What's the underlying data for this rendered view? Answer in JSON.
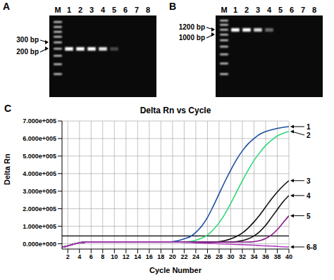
{
  "panels": [
    {
      "letter": "A",
      "type": "gel",
      "ladder_lane": "M",
      "sample_lanes": [
        "1",
        "2",
        "3",
        "4",
        "5",
        "6",
        "7",
        "8"
      ],
      "band_intensity": [
        1,
        1,
        1,
        0.9,
        0.25,
        0,
        0,
        0
      ],
      "markers": [
        {
          "label": "300 bp"
        },
        {
          "label": "200 bp"
        }
      ]
    },
    {
      "letter": "B",
      "type": "gel",
      "ladder_lane": "M",
      "sample_lanes": [
        "1",
        "2",
        "3",
        "4",
        "5",
        "6",
        "7",
        "8"
      ],
      "band_intensity": [
        1,
        1,
        0.85,
        0.4,
        0,
        0,
        0,
        0
      ],
      "markers": [
        {
          "label": "1200 bp"
        },
        {
          "label": "1000 bp"
        }
      ]
    }
  ],
  "chart_data": {
    "type": "line",
    "letter": "C",
    "title": "Delta Rn vs Cycle",
    "x_label": "Cycle Number",
    "y_label": "Delta Rn",
    "grid": true,
    "threshold": 45000,
    "x": [
      1,
      2,
      3,
      4,
      5,
      6,
      7,
      8,
      9,
      10,
      11,
      12,
      13,
      14,
      15,
      16,
      17,
      18,
      19,
      20,
      21,
      22,
      23,
      24,
      25,
      26,
      27,
      28,
      29,
      30,
      31,
      32,
      33,
      34,
      35,
      36,
      37,
      38,
      39,
      40
    ],
    "xlim": [
      1,
      40
    ],
    "xticks": [
      2,
      4,
      6,
      8,
      10,
      12,
      14,
      16,
      18,
      20,
      22,
      24,
      26,
      28,
      30,
      32,
      34,
      36,
      38,
      40
    ],
    "ylim": [
      -30000,
      700000
    ],
    "yticks": [
      {
        "value": 0,
        "label": "0.000e+000"
      },
      {
        "value": 100000,
        "label": "1.000e+005"
      },
      {
        "value": 200000,
        "label": "2.000e+005"
      },
      {
        "value": 300000,
        "label": "3.000e+005"
      },
      {
        "value": 400000,
        "label": "4.000e+005"
      },
      {
        "value": 500000,
        "label": "5.000e+005"
      },
      {
        "value": 600000,
        "label": "6.000e+005"
      },
      {
        "value": 700000,
        "label": "7.000e+005"
      }
    ],
    "series": [
      {
        "name": "1",
        "color": "#1f4fa0",
        "values": [
          -20000,
          -12000,
          -2000,
          6000,
          9000,
          10000,
          10000,
          10000,
          10000,
          10000,
          10000,
          10000,
          10000,
          10000,
          10000,
          10000,
          10000,
          10000,
          10000,
          12000,
          18000,
          28000,
          40000,
          65000,
          100000,
          150000,
          215000,
          285000,
          355000,
          420000,
          480000,
          530000,
          570000,
          600000,
          625000,
          640000,
          650000,
          658000,
          664000,
          668000
        ]
      },
      {
        "name": "2",
        "color": "#2ed87a",
        "values": [
          -20000,
          -12000,
          -2000,
          6000,
          9000,
          10000,
          10000,
          10000,
          10000,
          10000,
          10000,
          10000,
          10000,
          10000,
          10000,
          10000,
          10000,
          10000,
          10000,
          10000,
          10000,
          10000,
          13000,
          20000,
          32000,
          50000,
          80000,
          120000,
          170000,
          230000,
          295000,
          360000,
          420000,
          475000,
          520000,
          560000,
          590000,
          615000,
          630000,
          640000
        ]
      },
      {
        "name": "3",
        "color": "#111111",
        "values": [
          -20000,
          -12000,
          -2000,
          6000,
          9000,
          10000,
          10000,
          10000,
          10000,
          10000,
          10000,
          10000,
          10000,
          10000,
          10000,
          10000,
          10000,
          10000,
          10000,
          10000,
          10000,
          10000,
          10000,
          10000,
          10000,
          10000,
          10000,
          12000,
          18000,
          28000,
          42000,
          62000,
          90000,
          125000,
          165000,
          210000,
          255000,
          295000,
          330000,
          360000
        ]
      },
      {
        "name": "4",
        "color": "#111111",
        "values": [
          -20000,
          -12000,
          -2000,
          6000,
          9000,
          10000,
          10000,
          10000,
          10000,
          10000,
          10000,
          10000,
          10000,
          10000,
          10000,
          10000,
          10000,
          10000,
          10000,
          10000,
          10000,
          10000,
          10000,
          10000,
          10000,
          10000,
          10000,
          10000,
          10000,
          10000,
          12000,
          18000,
          28000,
          45000,
          70000,
          105000,
          150000,
          195000,
          240000,
          275000
        ]
      },
      {
        "name": "5",
        "color": "#8a1a8a",
        "values": [
          -20000,
          -12000,
          -2000,
          6000,
          9000,
          10000,
          10000,
          10000,
          10000,
          10000,
          10000,
          10000,
          10000,
          10000,
          10000,
          10000,
          10000,
          10000,
          10000,
          10000,
          10000,
          10000,
          10000,
          10000,
          10000,
          10000,
          10000,
          10000,
          10000,
          10000,
          10000,
          10000,
          10000,
          12000,
          18000,
          30000,
          50000,
          80000,
          120000,
          160000
        ]
      },
      {
        "name": "6-8",
        "color": "#b040c0",
        "values": [
          -20000,
          -12000,
          -2000,
          6000,
          9000,
          10000,
          10000,
          10000,
          10000,
          10000,
          10000,
          10000,
          10000,
          10000,
          10000,
          10000,
          10000,
          10000,
          10000,
          10000,
          9000,
          8000,
          7000,
          5000,
          4000,
          3000,
          2000,
          0,
          -1000,
          -2000,
          -4000,
          -5000,
          -7000,
          -8000,
          -10000,
          -12000,
          -13000,
          -15000,
          -17000,
          -18000
        ]
      }
    ]
  }
}
